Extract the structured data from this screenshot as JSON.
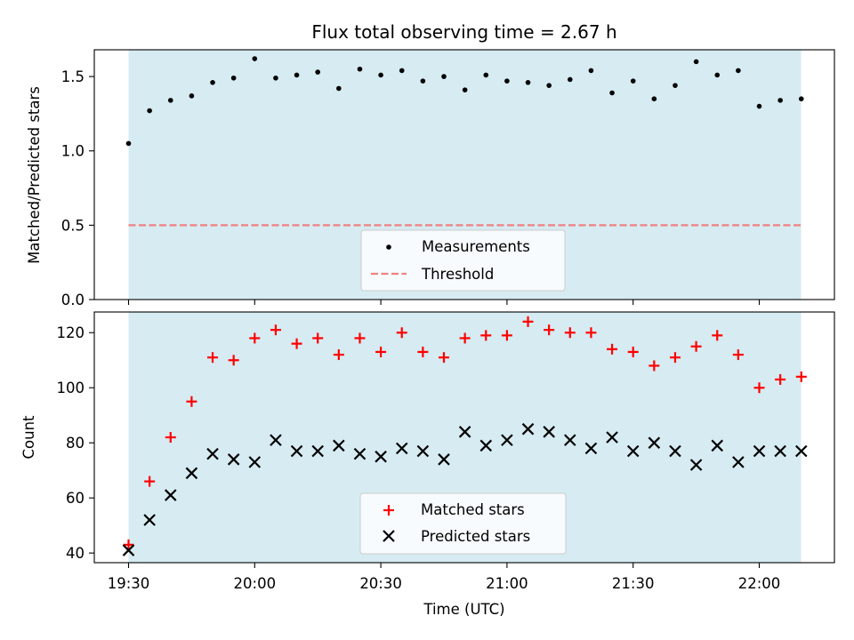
{
  "title": "Flux total observing time = 2.67 h",
  "xlabel": "Time (UTC)",
  "xticks": [
    "19:30",
    "20:00",
    "20:30",
    "21:00",
    "21:30",
    "22:00"
  ],
  "colors": {
    "shade": "#add8e6",
    "measurement": "#000000",
    "threshold": "#f08080",
    "matched": "#ff0000",
    "predicted": "#000000"
  },
  "chart_data": [
    {
      "type": "scatter",
      "ylabel": "Matched/Predicted stars",
      "ylim": [
        0,
        1.68
      ],
      "yticks": [
        "0.0",
        "0.5",
        "1.0",
        "1.5"
      ],
      "x": [
        "19:30",
        "19:35",
        "19:40",
        "19:45",
        "19:50",
        "19:55",
        "20:00",
        "20:05",
        "20:10",
        "20:15",
        "20:20",
        "20:25",
        "20:30",
        "20:35",
        "20:40",
        "20:45",
        "20:50",
        "20:55",
        "21:00",
        "21:05",
        "21:10",
        "21:15",
        "21:20",
        "21:25",
        "21:30",
        "21:35",
        "21:40",
        "21:45",
        "21:50",
        "21:55",
        "22:00",
        "22:05",
        "22:10"
      ],
      "series": [
        {
          "name": "Measurements",
          "values": [
            1.05,
            1.27,
            1.34,
            1.37,
            1.46,
            1.49,
            1.62,
            1.49,
            1.51,
            1.53,
            1.42,
            1.55,
            1.51,
            1.54,
            1.47,
            1.5,
            1.41,
            1.51,
            1.47,
            1.46,
            1.44,
            1.48,
            1.54,
            1.39,
            1.47,
            1.35,
            1.44,
            1.6,
            1.51,
            1.54,
            1.3,
            1.34,
            1.35
          ]
        },
        {
          "name": "Threshold",
          "values": [
            0.5,
            0.5
          ]
        }
      ],
      "legend": "bottom-center",
      "grid": false
    },
    {
      "type": "scatter",
      "ylabel": "Count",
      "ylim": [
        36.5,
        127.5
      ],
      "yticks": [
        "40",
        "60",
        "80",
        "100",
        "120"
      ],
      "x": [
        "19:30",
        "19:35",
        "19:40",
        "19:45",
        "19:50",
        "19:55",
        "20:00",
        "20:05",
        "20:10",
        "20:15",
        "20:20",
        "20:25",
        "20:30",
        "20:35",
        "20:40",
        "20:45",
        "20:50",
        "20:55",
        "21:00",
        "21:05",
        "21:10",
        "21:15",
        "21:20",
        "21:25",
        "21:30",
        "21:35",
        "21:40",
        "21:45",
        "21:50",
        "21:55",
        "22:00",
        "22:05",
        "22:10"
      ],
      "series": [
        {
          "name": "Matched stars",
          "values": [
            43,
            66,
            82,
            95,
            111,
            110,
            118,
            121,
            116,
            118,
            112,
            118,
            113,
            120,
            113,
            111,
            118,
            119,
            119,
            124,
            121,
            120,
            120,
            114,
            113,
            108,
            111,
            115,
            119,
            112,
            100,
            103,
            104
          ]
        },
        {
          "name": "Predicted stars",
          "values": [
            41,
            52,
            61,
            69,
            76,
            74,
            73,
            81,
            77,
            77,
            79,
            76,
            75,
            78,
            77,
            74,
            84,
            79,
            81,
            85,
            84,
            81,
            78,
            82,
            77,
            80,
            77,
            72,
            79,
            73,
            77,
            77,
            77
          ]
        }
      ],
      "legend": "bottom-center",
      "grid": false
    }
  ]
}
